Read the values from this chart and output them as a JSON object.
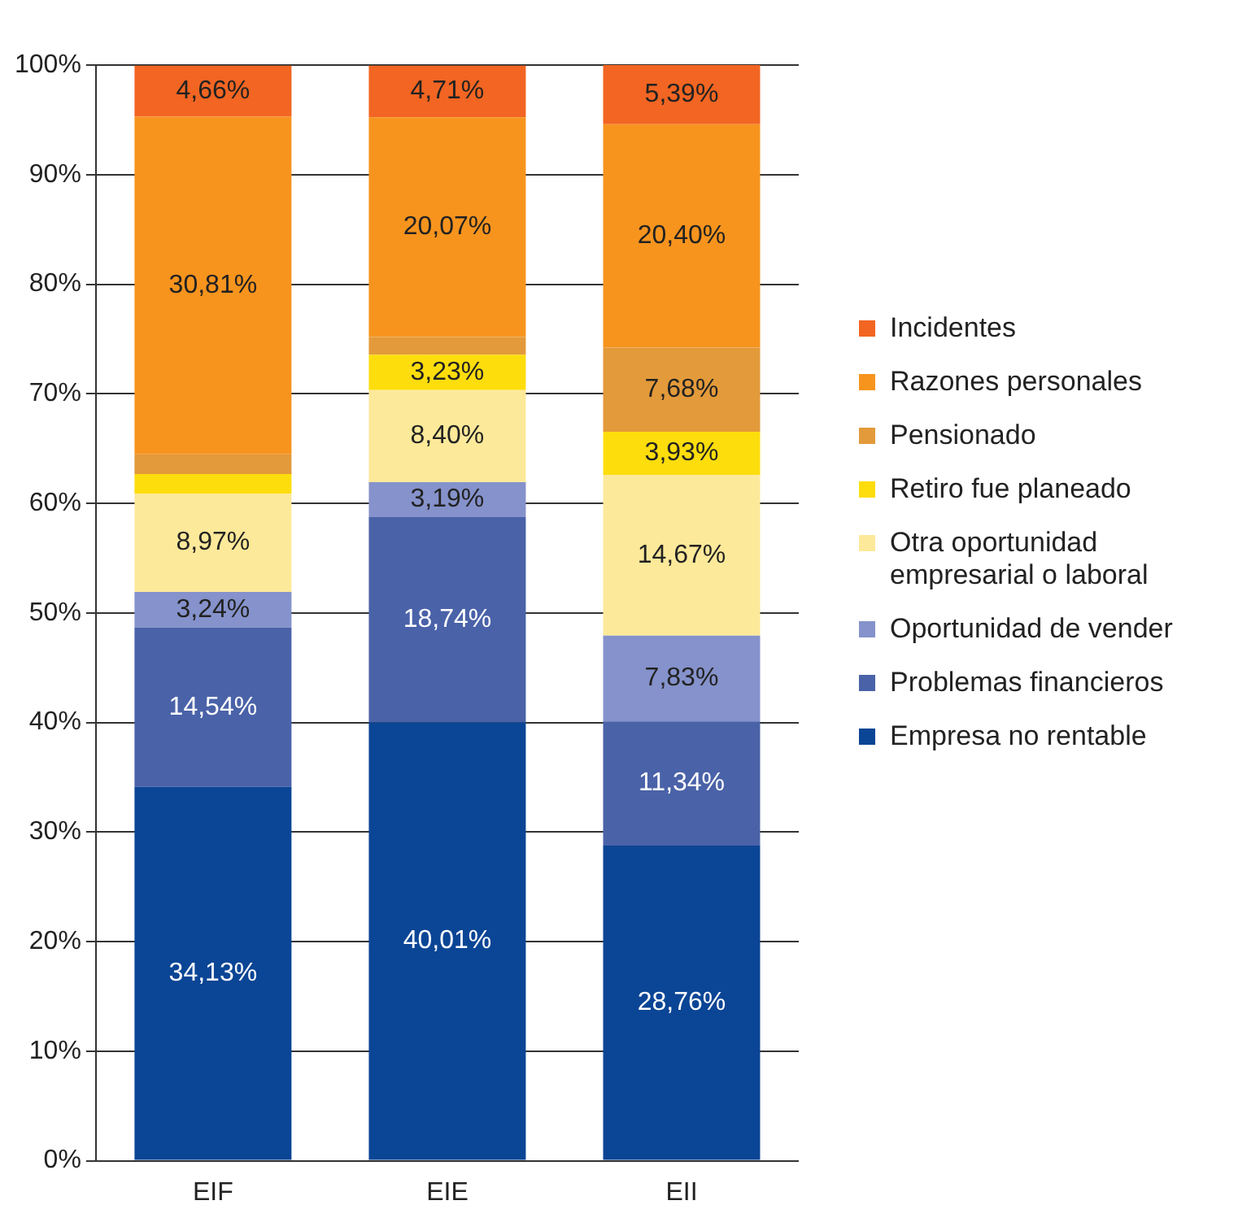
{
  "chart_data": {
    "type": "bar",
    "stacked": true,
    "categories": [
      "EIF",
      "EIE",
      "EII"
    ],
    "ylim": [
      0,
      100
    ],
    "yticks": [
      {
        "value": 0,
        "label": "0%"
      },
      {
        "value": 10,
        "label": "10%"
      },
      {
        "value": 20,
        "label": "20%"
      },
      {
        "value": 30,
        "label": "30%"
      },
      {
        "value": 40,
        "label": "40%"
      },
      {
        "value": 50,
        "label": "50%"
      },
      {
        "value": 60,
        "label": "60%"
      },
      {
        "value": 70,
        "label": "70%"
      },
      {
        "value": 80,
        "label": "80%"
      },
      {
        "value": 90,
        "label": "90%"
      },
      {
        "value": 100,
        "label": "100%"
      }
    ],
    "grid": "y",
    "legend": "right",
    "series": [
      {
        "name": "Empresa no rentable",
        "color": "#0b4595",
        "values": [
          34.13,
          40.01,
          28.76
        ],
        "value_labels": [
          "34,13%",
          "40,01%",
          "28,76%"
        ]
      },
      {
        "name": "Problemas financieros",
        "color": "#4a62a8",
        "values": [
          14.54,
          18.74,
          11.34
        ],
        "value_labels": [
          "14,54%",
          "18,74%",
          "11,34%"
        ]
      },
      {
        "name": "Oportunidad de vender",
        "color": "#8592cb",
        "values": [
          3.24,
          3.19,
          7.83
        ],
        "value_labels": [
          "3,24%",
          "3,19%",
          "7,83%"
        ]
      },
      {
        "name": "Otra oportunidad empresarial o laboral",
        "color": "#fde99a",
        "values": [
          8.97,
          8.4,
          14.67
        ],
        "value_labels": [
          "8,97%",
          "8,40%",
          "14,67%"
        ]
      },
      {
        "name": "Retiro fue planeado",
        "color": "#fedd0d",
        "values": [
          1.8,
          3.23,
          3.93
        ],
        "value_labels": [
          null,
          "3,23%",
          "3,93%"
        ]
      },
      {
        "name": "Pensionado",
        "color": "#e39a3a",
        "values": [
          1.8,
          1.6,
          7.68
        ],
        "value_labels": [
          null,
          null,
          "7,68%"
        ]
      },
      {
        "name": "Razones personales",
        "color": "#f7941e",
        "values": [
          30.81,
          20.07,
          20.4
        ],
        "value_labels": [
          "30,81%",
          "20,07%",
          "20,40%"
        ]
      },
      {
        "name": "Incidentes",
        "color": "#f26522",
        "values": [
          4.66,
          4.71,
          5.39
        ],
        "value_labels": [
          "4,66%",
          "4,71%",
          "5,39%"
        ]
      }
    ]
  }
}
